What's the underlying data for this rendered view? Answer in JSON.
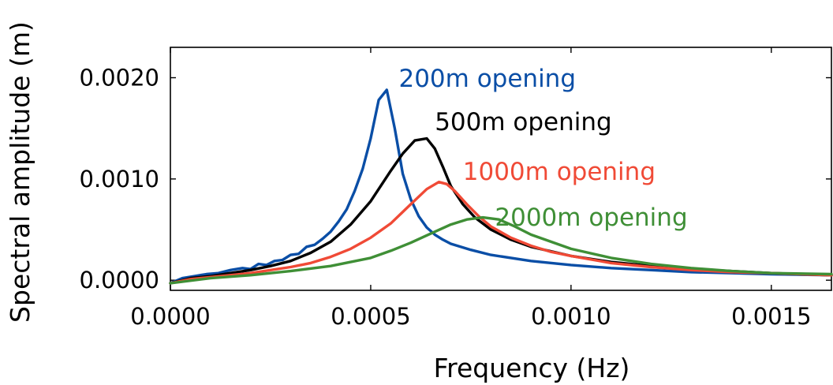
{
  "chart_data": {
    "type": "line",
    "title": "",
    "xlabel": "Frequency (Hz)",
    "ylabel": "Spectral amplitude (m)",
    "xlim": [
      0.0,
      0.00165
    ],
    "ylim": [
      -0.0001,
      0.0023
    ],
    "x_ticks": [
      0.0,
      0.0005,
      0.001,
      0.0015
    ],
    "x_tick_labels": [
      "0.0000",
      "0.0005",
      "0.0010",
      "0.0015"
    ],
    "y_ticks": [
      0.0,
      0.001,
      0.002
    ],
    "y_tick_labels": [
      "0.0000",
      "0.0010",
      "0.0020"
    ],
    "grid": false,
    "legend": "inline labels",
    "series": [
      {
        "name": "200m opening",
        "color": "#0a4ea6",
        "x": [
          0.0,
          3e-05,
          6e-05,
          9e-05,
          0.00012,
          0.00015,
          0.00018,
          0.0002,
          0.00022,
          0.00024,
          0.00026,
          0.00028,
          0.0003,
          0.00032,
          0.00034,
          0.00036,
          0.00038,
          0.0004,
          0.00042,
          0.00044,
          0.00046,
          0.00048,
          0.0005,
          0.00052,
          0.00054,
          0.00056,
          0.00058,
          0.0006,
          0.00062,
          0.00064,
          0.00066,
          0.00068,
          0.0007,
          0.00075,
          0.0008,
          0.0009,
          0.001,
          0.0011,
          0.0012,
          0.0013,
          0.0014,
          0.0015,
          0.00165
        ],
        "y": [
          -3e-05,
          2e-05,
          4e-05,
          6e-05,
          7e-05,
          0.0001,
          0.00012,
          0.00011,
          0.00016,
          0.00015,
          0.00019,
          0.0002,
          0.00025,
          0.00026,
          0.00033,
          0.00035,
          0.00041,
          0.00048,
          0.00058,
          0.0007,
          0.00088,
          0.0011,
          0.0014,
          0.00178,
          0.00188,
          0.0015,
          0.00105,
          0.0008,
          0.00063,
          0.00052,
          0.00045,
          0.0004,
          0.00036,
          0.0003,
          0.00025,
          0.00019,
          0.00015,
          0.00012,
          0.0001,
          8e-05,
          7e-05,
          6e-05,
          5e-05
        ]
      },
      {
        "name": "500m opening",
        "color": "#000000",
        "x": [
          0.0,
          5e-05,
          0.0001,
          0.00015,
          0.0002,
          0.00025,
          0.0003,
          0.00035,
          0.0004,
          0.00045,
          0.0005,
          0.00055,
          0.00058,
          0.00061,
          0.00064,
          0.00066,
          0.00068,
          0.0007,
          0.00073,
          0.00076,
          0.0008,
          0.00085,
          0.0009,
          0.001,
          0.0011,
          0.0012,
          0.0013,
          0.0014,
          0.0015,
          0.00165
        ],
        "y": [
          -3e-05,
          2e-05,
          4e-05,
          7e-05,
          0.0001,
          0.00014,
          0.00019,
          0.00027,
          0.00038,
          0.00055,
          0.00078,
          0.00108,
          0.00125,
          0.00138,
          0.0014,
          0.0013,
          0.00112,
          0.00093,
          0.00075,
          0.00062,
          0.0005,
          0.0004,
          0.00033,
          0.00024,
          0.00018,
          0.00014,
          0.00011,
          9e-05,
          7e-05,
          5e-05
        ]
      },
      {
        "name": "1000m opening",
        "color": "#f04a36",
        "x": [
          0.0,
          5e-05,
          0.0001,
          0.00015,
          0.0002,
          0.00025,
          0.0003,
          0.00035,
          0.0004,
          0.00045,
          0.0005,
          0.00055,
          0.0006,
          0.00064,
          0.00067,
          0.00069,
          0.00071,
          0.00074,
          0.00077,
          0.0008,
          0.00085,
          0.0009,
          0.00095,
          0.001,
          0.0011,
          0.0012,
          0.0013,
          0.0014,
          0.0015,
          0.00165
        ],
        "y": [
          -3e-05,
          1e-05,
          3e-05,
          5e-05,
          7e-05,
          0.0001,
          0.00013,
          0.00017,
          0.00023,
          0.00031,
          0.00042,
          0.00056,
          0.00075,
          0.0009,
          0.00097,
          0.00095,
          0.00088,
          0.00075,
          0.00063,
          0.00053,
          0.00042,
          0.00034,
          0.00028,
          0.00024,
          0.00017,
          0.00013,
          0.0001,
          8e-05,
          7e-05,
          5e-05
        ]
      },
      {
        "name": "2000m opening",
        "color": "#3f8f36",
        "x": [
          0.0,
          0.0001,
          0.0002,
          0.0003,
          0.0004,
          0.00045,
          0.0005,
          0.00055,
          0.0006,
          0.00065,
          0.0007,
          0.00074,
          0.00078,
          0.00082,
          0.00086,
          0.0009,
          0.00095,
          0.001,
          0.0011,
          0.0012,
          0.0013,
          0.0014,
          0.0015,
          0.00165
        ],
        "y": [
          -3e-05,
          2e-05,
          5e-05,
          9e-05,
          0.00014,
          0.00018,
          0.00022,
          0.00029,
          0.00037,
          0.00046,
          0.00055,
          0.0006,
          0.00062,
          0.0006,
          0.00053,
          0.00045,
          0.00038,
          0.00031,
          0.00022,
          0.00016,
          0.00012,
          9e-05,
          7e-05,
          6e-05
        ]
      }
    ],
    "annotations": [
      {
        "text": "200m opening",
        "series": 0,
        "x": 0.00057,
        "y": 0.00191
      },
      {
        "text": "500m opening",
        "series": 1,
        "x": 0.00066,
        "y": 0.00148
      },
      {
        "text": "1000m opening",
        "series": 2,
        "x": 0.00073,
        "y": 0.00099
      },
      {
        "text": "2000m opening",
        "series": 3,
        "x": 0.00081,
        "y": 0.00054
      }
    ]
  }
}
